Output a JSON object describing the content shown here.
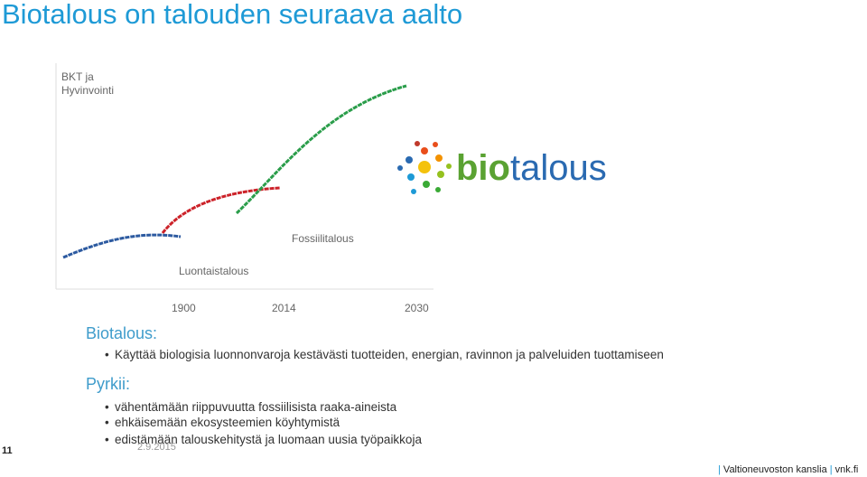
{
  "header": {
    "title": "Biotalous on talouden seuraava aalto"
  },
  "diagram": {
    "axis_label": [
      "BKT ja",
      "Hyvinvointi"
    ],
    "curve_labels": [
      "Fossiilitalous",
      "Luontaistalous"
    ],
    "years": [
      "1900",
      "2014",
      "2030"
    ]
  },
  "logo": {
    "prefix": "bio",
    "suffix": "talous"
  },
  "sections": [
    {
      "heading": "Biotalous:",
      "bullets": [
        "Käyttää biologisia luonnonvaroja  kestävästi tuotteiden, energian, ravinnon ja palveluiden tuottamiseen"
      ]
    },
    {
      "heading": "Pyrkii:",
      "bullets": [
        "vähentämään riippuvuutta fossiilisista raaka-aineista",
        "ehkäisemään ekosysteemien köyhtymistä",
        "edistämään talouskehitystä ja luomaan uusia työpaikkoja"
      ]
    }
  ],
  "footer": {
    "page": "11",
    "date": "2.9.2015",
    "org": "Valtioneuvoston kanslia",
    "site": "vnk.fi"
  }
}
